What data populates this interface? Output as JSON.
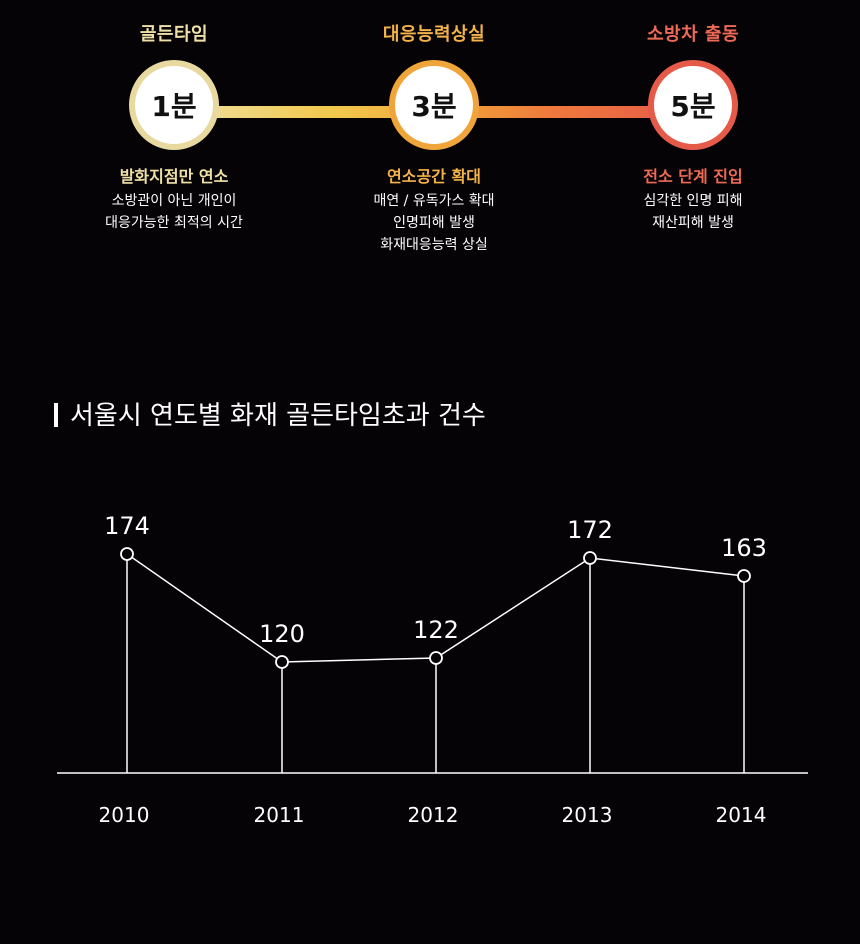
{
  "timeline": {
    "stages": [
      {
        "time": "1분",
        "label": "골든타임",
        "title": "발화지점만 연소",
        "lines": [
          "소방관이 아닌 개인이",
          "대응가능한 최적의 시간"
        ],
        "color": "#eee0a6",
        "ring": "#e8d9a0"
      },
      {
        "time": "3분",
        "label": "대응능력상실",
        "title": "연소공간 확대",
        "lines": [
          "매연 / 유독가스 확대",
          "인명피해 발생",
          "화재대응능력 상실"
        ],
        "color": "#f3b24a",
        "ring": "#f0a53a"
      },
      {
        "time": "5분",
        "label": "소방차 출동",
        "title": "전소 단계 진입",
        "lines": [
          "심각한 인명 피해",
          "재산피해 발생"
        ],
        "color": "#ef6a56",
        "ring": "#e65a4a"
      }
    ]
  },
  "chart_data": {
    "type": "line",
    "title": "서울시 연도별 화재 골든타임초과 건수",
    "categories": [
      "2010",
      "2011",
      "2012",
      "2013",
      "2014"
    ],
    "values": [
      174,
      120,
      122,
      172,
      163
    ],
    "data_labels": [
      "174",
      "120",
      "122",
      "172",
      "163"
    ],
    "grid": false,
    "line_color": "#ffffff"
  }
}
